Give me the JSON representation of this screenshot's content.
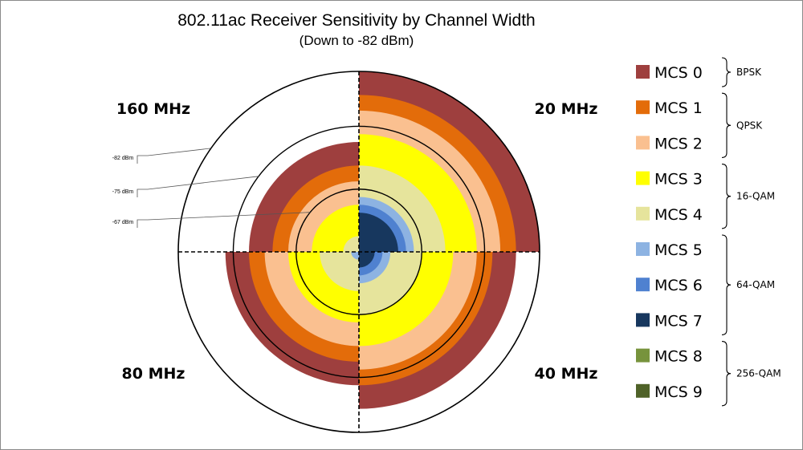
{
  "chart_data": {
    "type": "polar-area",
    "title": "802.11ac Receiver Sensitivity by Channel Width",
    "subtitle": "(Down to -82 dBm)",
    "quadrants": [
      {
        "label": "20 MHz",
        "position": "top-right"
      },
      {
        "label": "40 MHz",
        "position": "bottom-right"
      },
      {
        "label": "80 MHz",
        "position": "bottom-left"
      },
      {
        "label": "160 MHz",
        "position": "top-left"
      }
    ],
    "radial_scale": {
      "outer_dbm": -82,
      "min_dbm": -59
    },
    "sensitivity_dbm": {
      "20 MHz": [
        -82,
        -79,
        -77,
        -74,
        -70,
        -66,
        -65,
        -64,
        -59,
        -57
      ],
      "40 MHz": [
        -79,
        -76,
        -74,
        -71,
        -67,
        -63,
        -62,
        -61,
        -56,
        -54
      ],
      "80 MHz": [
        -76,
        -73,
        -71,
        -68,
        -64,
        -60,
        -59,
        -58,
        -53,
        -51
      ],
      "160 MHz": [
        -73,
        -70,
        -68,
        -65,
        -61,
        -57,
        -56,
        -55,
        -50,
        -48
      ]
    },
    "reference_circles": [
      {
        "label": "-82 dBm",
        "dbm": -82
      },
      {
        "label": "-75 dBm",
        "dbm": -75
      },
      {
        "label": "-67 dBm",
        "dbm": -67
      }
    ],
    "legend": [
      {
        "label": "MCS 0",
        "color": "#9e3f3e"
      },
      {
        "label": "MCS 1",
        "color": "#e36c0a"
      },
      {
        "label": "MCS 2",
        "color": "#fac090"
      },
      {
        "label": "MCS 3",
        "color": "#ffff00"
      },
      {
        "label": "MCS 4",
        "color": "#e6e49c"
      },
      {
        "label": "MCS 5",
        "color": "#8db3e2"
      },
      {
        "label": "MCS 6",
        "color": "#4f81d0"
      },
      {
        "label": "MCS 7",
        "color": "#17375e"
      },
      {
        "label": "MCS 8",
        "color": "#77933c"
      },
      {
        "label": "MCS 9",
        "color": "#4f6228"
      }
    ],
    "legend_groups": [
      {
        "label": "BPSK",
        "from": 0,
        "to": 0
      },
      {
        "label": "QPSK",
        "from": 1,
        "to": 2
      },
      {
        "label": "16-QAM",
        "from": 3,
        "to": 4
      },
      {
        "label": "64-QAM",
        "from": 5,
        "to": 7
      },
      {
        "label": "256-QAM",
        "from": 8,
        "to": 9
      }
    ]
  }
}
